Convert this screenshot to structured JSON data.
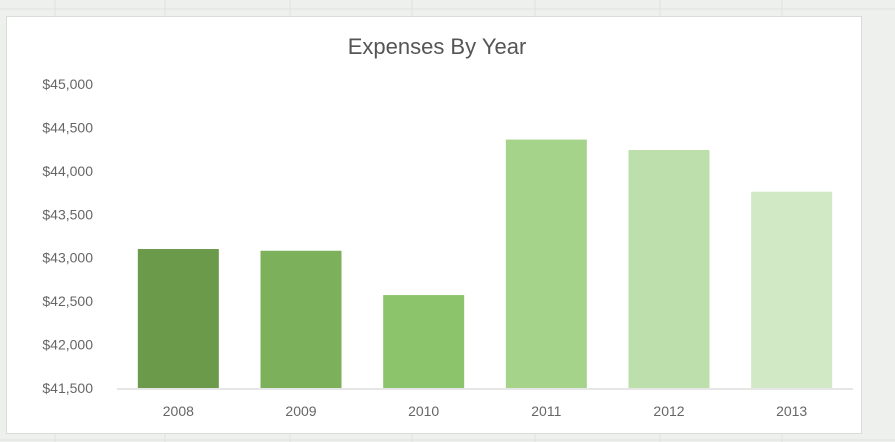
{
  "chart_data": {
    "type": "bar",
    "title": "Expenses By Year",
    "xlabel": "",
    "ylabel": "",
    "categories": [
      "2008",
      "2009",
      "2010",
      "2011",
      "2012",
      "2013"
    ],
    "values": [
      43100,
      43080,
      42570,
      44360,
      44240,
      43760
    ],
    "ylim": [
      41500,
      45000
    ],
    "yticks": [
      "$41,500",
      "$42,000",
      "$42,500",
      "$43,000",
      "$43,500",
      "$44,000",
      "$44,500",
      "$45,000"
    ],
    "ytick_values": [
      41500,
      42000,
      42500,
      43000,
      43500,
      44000,
      44500,
      45000
    ],
    "grid": false,
    "legend": "none",
    "bar_colors": [
      "#6a9a4a",
      "#7cb05a",
      "#8cc46c",
      "#a6d38a",
      "#bddfab",
      "#d1e9c4"
    ],
    "axis_color": "#dddddd"
  }
}
